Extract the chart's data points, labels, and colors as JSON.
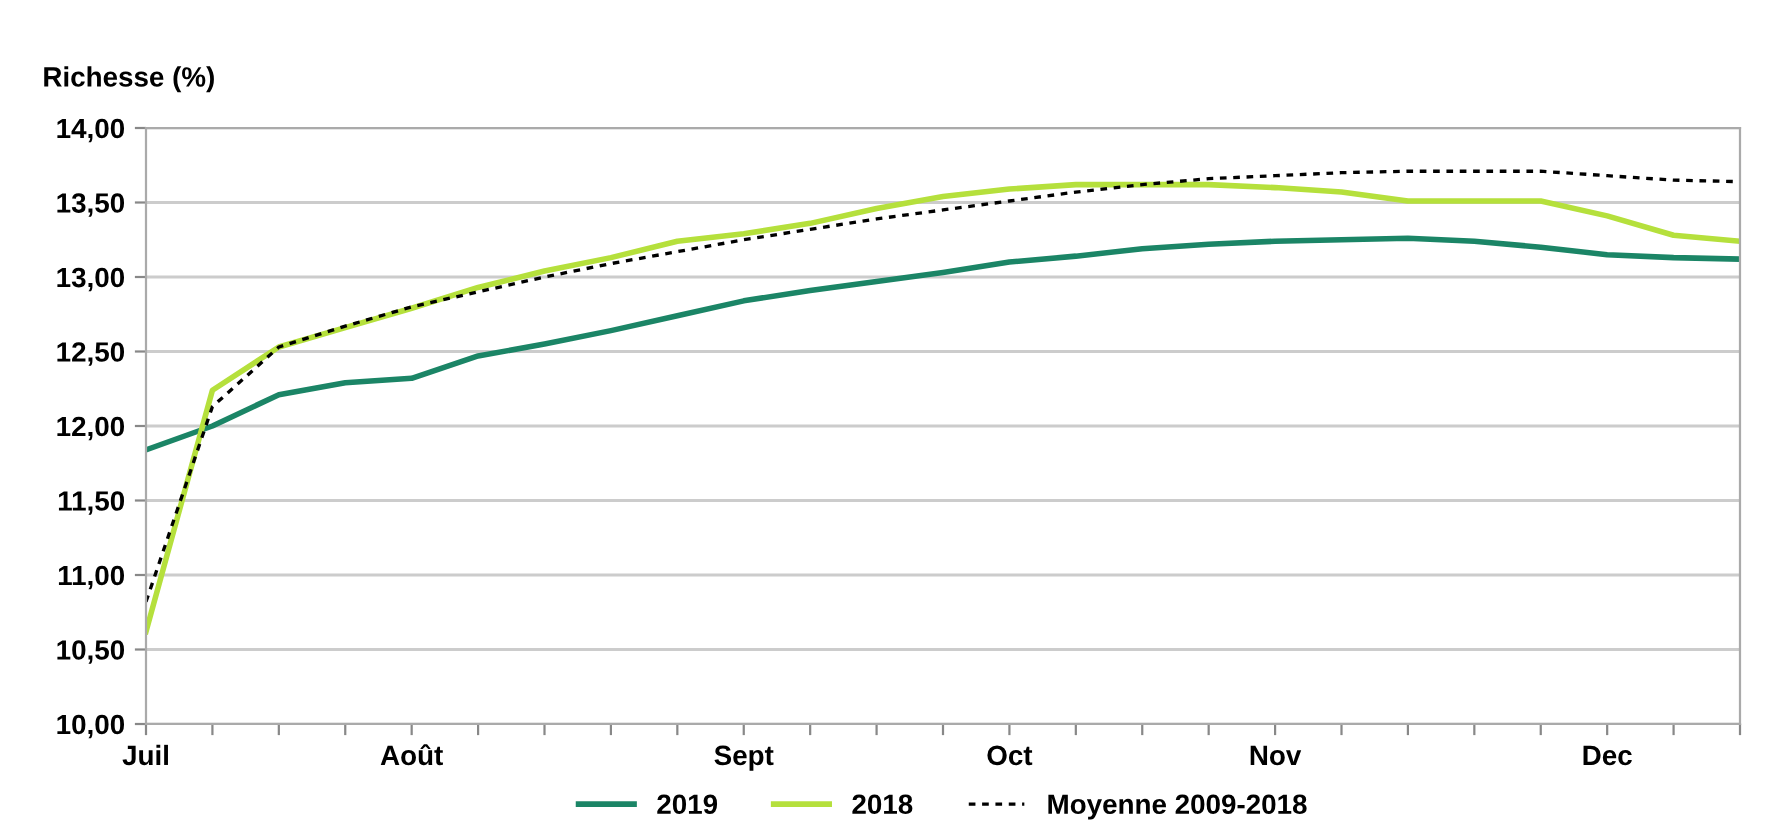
{
  "chart_data": {
    "type": "line",
    "ylabel": "Richesse (%)",
    "categories": [
      "Juil",
      null,
      null,
      null,
      "Août",
      null,
      null,
      null,
      null,
      "Sept",
      null,
      null,
      null,
      "Oct",
      null,
      null,
      null,
      "Nov",
      null,
      null,
      null,
      null,
      "Dec",
      null,
      null
    ],
    "series": [
      {
        "name": "2019",
        "color": "#1b8566",
        "line_style": "solid",
        "values": [
          11.84,
          12.0,
          12.21,
          12.29,
          12.32,
          12.47,
          12.55,
          12.64,
          12.74,
          12.84,
          12.91,
          12.97,
          13.03,
          13.1,
          13.14,
          13.19,
          13.22,
          13.24,
          13.25,
          13.26,
          13.24,
          13.2,
          13.15,
          13.13,
          13.12
        ]
      },
      {
        "name": "2018",
        "color": "#b5e03c",
        "line_style": "solid",
        "values": [
          10.62,
          12.24,
          12.53,
          12.66,
          12.79,
          12.93,
          13.04,
          13.13,
          13.24,
          13.29,
          13.36,
          13.46,
          13.54,
          13.59,
          13.62,
          13.62,
          13.62,
          13.6,
          13.57,
          13.51,
          13.51,
          13.51,
          13.41,
          13.28,
          13.24
        ]
      },
      {
        "name": "Moyenne 2009-2018",
        "color": "#000000",
        "line_style": "dotted",
        "values": [
          10.82,
          12.13,
          12.53,
          12.67,
          12.8,
          12.9,
          13.0,
          13.09,
          13.17,
          13.25,
          13.32,
          13.39,
          13.45,
          13.51,
          13.57,
          13.62,
          13.66,
          13.68,
          13.7,
          13.71,
          13.71,
          13.71,
          13.68,
          13.65,
          13.64
        ]
      }
    ],
    "ylim": [
      10,
      14
    ],
    "yticks": [
      {
        "value": 10,
        "label": "10,00"
      },
      {
        "value": 10.5,
        "label": "10,50"
      },
      {
        "value": 11,
        "label": "11,00"
      },
      {
        "value": 11.5,
        "label": "11,50"
      },
      {
        "value": 12,
        "label": "12,00"
      },
      {
        "value": 12.5,
        "label": "12,50"
      },
      {
        "value": 13,
        "label": "13,00"
      },
      {
        "value": 13.5,
        "label": "13,50"
      },
      {
        "value": 14,
        "label": "14,00"
      }
    ],
    "grid": "y",
    "legend": "bottom",
    "marker": "none"
  }
}
